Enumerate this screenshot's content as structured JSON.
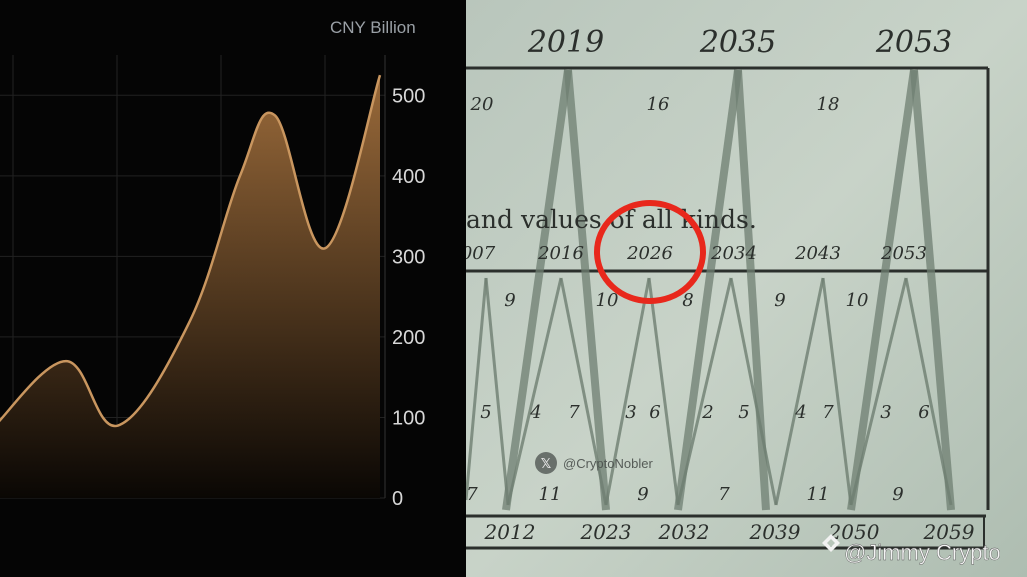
{
  "chart_data": [
    {
      "type": "area",
      "unit_label": "CNY Billion",
      "y_ticks": [
        "500",
        "400",
        "300",
        "200",
        "100",
        "0"
      ],
      "ylim": [
        0,
        550
      ],
      "grid": true,
      "series": [
        {
          "points": [
            {
              "x": 0,
              "y": 90
            },
            {
              "x": 1,
              "y": 170
            },
            {
              "x": 2,
              "y": 90
            },
            {
              "x": 3,
              "y": 220
            },
            {
              "x": 4,
              "y": 400
            },
            {
              "x": 5,
              "y": 475
            },
            {
              "x": 6,
              "y": 310
            },
            {
              "x": 7,
              "y": 525
            }
          ]
        }
      ],
      "colors": {
        "line": "#c9965f",
        "fill_top": "#9a6a3a",
        "fill_bottom": "#0a0704"
      }
    },
    {
      "type": "diagram",
      "top_years": [
        "2019",
        "2035",
        "2053"
      ],
      "top_row_numbers": [
        "20",
        "16",
        "18"
      ],
      "caption_fragment": "and values of all kinds.",
      "middle_years": [
        "007",
        "2016",
        "2026",
        "2034",
        "2043",
        "2053"
      ],
      "middle_numbers": [
        "9",
        "10",
        "8",
        "9",
        "10"
      ],
      "lower_numbers": [
        "5",
        "4",
        "7",
        "3",
        "6",
        "2",
        "5",
        "4",
        "7",
        "3",
        "6"
      ],
      "bottom_numbers": [
        "7",
        "11",
        "9",
        "7",
        "11",
        "9"
      ],
      "bottom_years": [
        "2012",
        "2023",
        "2032",
        "2039",
        "2050",
        "2059"
      ],
      "highlighted_year": "2026",
      "watermark_handle": "@CryptoNobler",
      "credit": "@Jimmy Crypto"
    }
  ]
}
